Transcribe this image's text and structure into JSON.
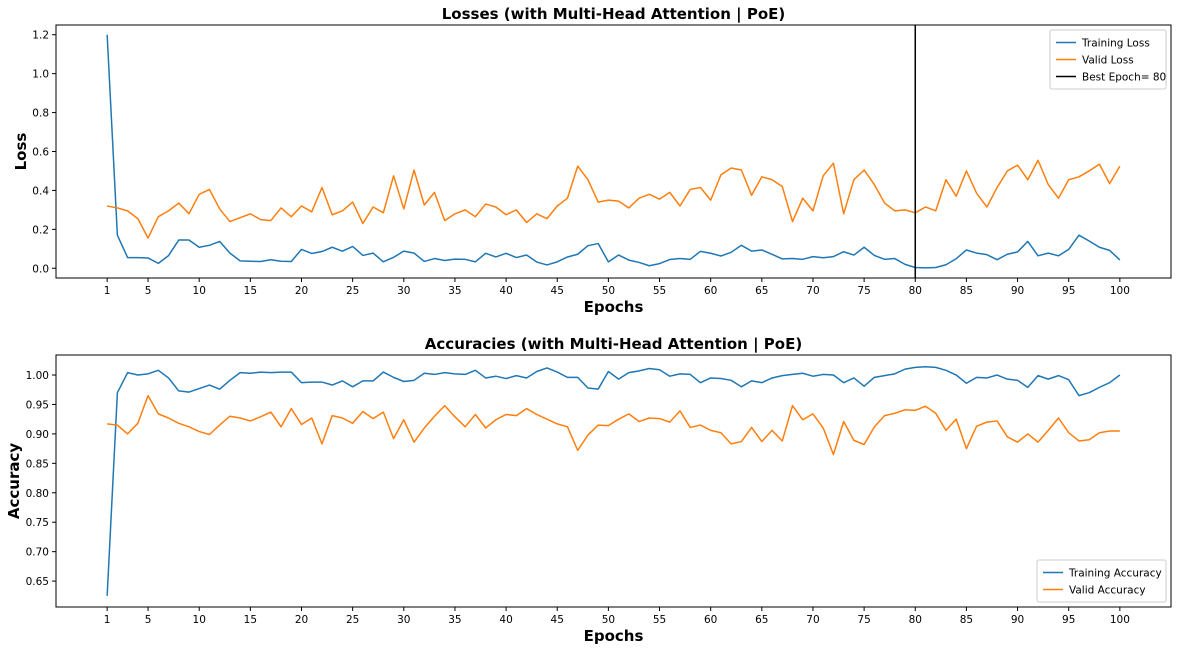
{
  "figure": {
    "charts_count": 2
  },
  "chart_data": [
    {
      "type": "line",
      "title": "Losses (with Multi-Head Attention | PoE)",
      "xlabel": "Epochs",
      "ylabel": "Loss",
      "xlim": [
        -4,
        105
      ],
      "ylim": [
        -0.05,
        1.25
      ],
      "x_ticks": [
        1,
        5,
        10,
        15,
        20,
        25,
        30,
        35,
        40,
        45,
        50,
        55,
        60,
        65,
        70,
        75,
        80,
        85,
        90,
        95,
        100
      ],
      "y_ticks": [
        0.0,
        0.2,
        0.4,
        0.6,
        0.8,
        1.0,
        1.2
      ],
      "y_tick_labels": [
        "0.0",
        "0.2",
        "0.4",
        "0.6",
        "0.8",
        "1.0",
        "1.2"
      ],
      "grid": false,
      "legend_position": "top-right",
      "x_start": 1,
      "series": [
        {
          "name": "Training Loss",
          "color": "#1f77b4",
          "values": [
            1.2,
            0.17,
            0.055,
            0.055,
            0.053,
            0.025,
            0.065,
            0.145,
            0.145,
            0.108,
            0.118,
            0.138,
            0.078,
            0.038,
            0.036,
            0.035,
            0.044,
            0.036,
            0.035,
            0.097,
            0.076,
            0.086,
            0.108,
            0.088,
            0.112,
            0.066,
            0.078,
            0.033,
            0.056,
            0.088,
            0.078,
            0.035,
            0.05,
            0.04,
            0.047,
            0.046,
            0.033,
            0.077,
            0.058,
            0.077,
            0.055,
            0.068,
            0.032,
            0.017,
            0.033,
            0.058,
            0.072,
            0.116,
            0.127,
            0.033,
            0.068,
            0.042,
            0.03,
            0.013,
            0.024,
            0.045,
            0.05,
            0.046,
            0.087,
            0.077,
            0.063,
            0.082,
            0.118,
            0.088,
            0.094,
            0.072,
            0.048,
            0.05,
            0.046,
            0.06,
            0.054,
            0.06,
            0.085,
            0.068,
            0.108,
            0.066,
            0.046,
            0.05,
            0.02,
            0.004,
            0.002,
            0.004,
            0.018,
            0.049,
            0.094,
            0.078,
            0.07,
            0.044,
            0.072,
            0.084,
            0.138,
            0.064,
            0.078,
            0.064,
            0.097,
            0.17,
            0.14,
            0.108,
            0.092,
            0.043
          ]
        },
        {
          "name": "Valid Loss",
          "color": "#ff7f0e",
          "values": [
            0.32,
            0.31,
            0.295,
            0.255,
            0.155,
            0.265,
            0.295,
            0.335,
            0.28,
            0.38,
            0.405,
            0.305,
            0.24,
            0.26,
            0.28,
            0.25,
            0.245,
            0.31,
            0.265,
            0.32,
            0.29,
            0.415,
            0.275,
            0.295,
            0.34,
            0.23,
            0.315,
            0.285,
            0.475,
            0.305,
            0.505,
            0.325,
            0.39,
            0.245,
            0.28,
            0.3,
            0.265,
            0.33,
            0.315,
            0.275,
            0.3,
            0.235,
            0.28,
            0.255,
            0.32,
            0.36,
            0.525,
            0.455,
            0.34,
            0.35,
            0.345,
            0.31,
            0.36,
            0.38,
            0.355,
            0.39,
            0.32,
            0.405,
            0.415,
            0.35,
            0.48,
            0.515,
            0.505,
            0.375,
            0.47,
            0.455,
            0.42,
            0.24,
            0.36,
            0.295,
            0.475,
            0.54,
            0.28,
            0.455,
            0.505,
            0.43,
            0.335,
            0.295,
            0.3,
            0.285,
            0.315,
            0.295,
            0.455,
            0.37,
            0.5,
            0.385,
            0.315,
            0.415,
            0.5,
            0.53,
            0.455,
            0.555,
            0.43,
            0.36,
            0.455,
            0.47,
            0.5,
            0.535,
            0.435,
            0.525
          ]
        }
      ],
      "vline": {
        "x": 80,
        "label": "Best Epoch= 80",
        "color": "#000000"
      }
    },
    {
      "type": "line",
      "title": "Accuracies (with Multi-Head Attention | PoE)",
      "xlabel": "Epochs",
      "ylabel": "Accuracy",
      "xlim": [
        -4,
        105
      ],
      "ylim": [
        0.606,
        1.034
      ],
      "x_ticks": [
        1,
        5,
        10,
        15,
        20,
        25,
        30,
        35,
        40,
        45,
        50,
        55,
        60,
        65,
        70,
        75,
        80,
        85,
        90,
        95,
        100
      ],
      "y_ticks": [
        0.65,
        0.7,
        0.75,
        0.8,
        0.85,
        0.9,
        0.95,
        1.0
      ],
      "y_tick_labels": [
        "0.65",
        "0.70",
        "0.75",
        "0.80",
        "0.85",
        "0.90",
        "0.95",
        "1.00"
      ],
      "grid": false,
      "legend_position": "bottom-right",
      "x_start": 1,
      "series": [
        {
          "name": "Training Accuracy",
          "color": "#1f77b4",
          "values": [
            0.625,
            0.97,
            1.004,
            1.0,
            1.002,
            1.008,
            0.995,
            0.973,
            0.971,
            0.977,
            0.983,
            0.976,
            0.991,
            1.004,
            1.003,
            1.005,
            1.004,
            1.005,
            1.005,
            0.987,
            0.988,
            0.988,
            0.983,
            0.99,
            0.98,
            0.99,
            0.99,
            1.005,
            0.996,
            0.989,
            0.991,
            1.003,
            1.001,
            1.004,
            1.002,
            1.001,
            1.008,
            0.995,
            0.998,
            0.994,
            0.999,
            0.995,
            1.006,
            1.012,
            1.005,
            0.996,
            0.996,
            0.978,
            0.976,
            1.006,
            0.993,
            1.004,
            1.007,
            1.011,
            1.009,
            0.998,
            1.002,
            1.001,
            0.987,
            0.995,
            0.994,
            0.991,
            0.98,
            0.99,
            0.987,
            0.995,
            0.999,
            1.001,
            1.003,
            0.998,
            1.001,
            1.0,
            0.987,
            0.995,
            0.981,
            0.996,
            0.999,
            1.002,
            1.01,
            1.013,
            1.014,
            1.013,
            1.008,
            1.0,
            0.986,
            0.996,
            0.995,
            1.0,
            0.993,
            0.991,
            0.979,
            0.999,
            0.993,
            0.999,
            0.992,
            0.965,
            0.97,
            0.979,
            0.987,
            1.0
          ]
        },
        {
          "name": "Valid Accuracy",
          "color": "#ff7f0e",
          "values": [
            0.917,
            0.915,
            0.9,
            0.918,
            0.965,
            0.934,
            0.927,
            0.918,
            0.912,
            0.904,
            0.899,
            0.915,
            0.93,
            0.927,
            0.922,
            0.929,
            0.937,
            0.912,
            0.943,
            0.916,
            0.927,
            0.883,
            0.931,
            0.927,
            0.918,
            0.938,
            0.926,
            0.937,
            0.892,
            0.924,
            0.886,
            0.91,
            0.93,
            0.948,
            0.929,
            0.912,
            0.933,
            0.91,
            0.924,
            0.933,
            0.931,
            0.943,
            0.933,
            0.925,
            0.917,
            0.912,
            0.872,
            0.898,
            0.915,
            0.914,
            0.925,
            0.934,
            0.921,
            0.927,
            0.926,
            0.92,
            0.939,
            0.911,
            0.915,
            0.906,
            0.902,
            0.883,
            0.887,
            0.911,
            0.887,
            0.906,
            0.888,
            0.948,
            0.924,
            0.934,
            0.91,
            0.865,
            0.921,
            0.889,
            0.882,
            0.912,
            0.931,
            0.935,
            0.941,
            0.94,
            0.947,
            0.935,
            0.906,
            0.925,
            0.875,
            0.913,
            0.92,
            0.922,
            0.895,
            0.886,
            0.9,
            0.886,
            0.906,
            0.927,
            0.902,
            0.888,
            0.89,
            0.902,
            0.905,
            0.905
          ]
        }
      ]
    }
  ]
}
